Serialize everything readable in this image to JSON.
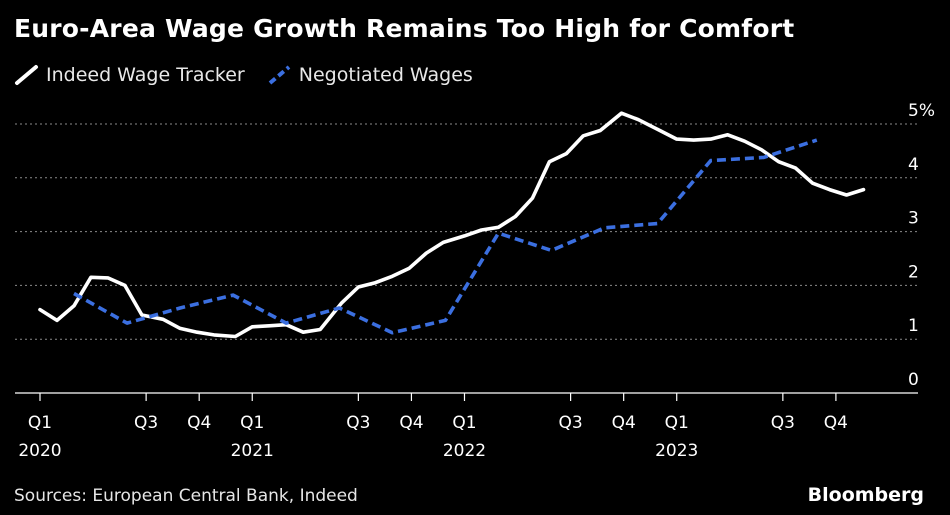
{
  "chart_data": {
    "type": "line",
    "title": "Euro-Area Wage Growth Remains Too High for Comfort",
    "source": "Sources: European Central Bank, Indeed",
    "brand": "Bloomberg",
    "y_unit": "%",
    "ylim": [
      0,
      5
    ],
    "yticks": [
      0,
      1,
      2,
      3,
      4,
      5
    ],
    "xlim": [
      2020.0,
      2023.9
    ],
    "quarter_ticks": [
      {
        "x": 2020.0,
        "label": "Q1",
        "year": "2020"
      },
      {
        "x": 2020.5,
        "label": "Q3",
        "year": ""
      },
      {
        "x": 2020.75,
        "label": "Q4",
        "year": ""
      },
      {
        "x": 2021.0,
        "label": "Q1",
        "year": "2021"
      },
      {
        "x": 2021.5,
        "label": "Q3",
        "year": ""
      },
      {
        "x": 2021.75,
        "label": "Q4",
        "year": ""
      },
      {
        "x": 2022.0,
        "label": "Q1",
        "year": "2022"
      },
      {
        "x": 2022.5,
        "label": "Q3",
        "year": ""
      },
      {
        "x": 2022.75,
        "label": "Q4",
        "year": ""
      },
      {
        "x": 2023.0,
        "label": "Q1",
        "year": "2023"
      },
      {
        "x": 2023.5,
        "label": "Q3",
        "year": ""
      },
      {
        "x": 2023.75,
        "label": "Q4",
        "year": ""
      }
    ],
    "grid": true,
    "legend_position": "top-left",
    "series": [
      {
        "name": "Indeed Wage Tracker",
        "color": "#ffffff",
        "style": "solid",
        "points": [
          [
            2020.0,
            1.55
          ],
          [
            2020.08,
            1.35
          ],
          [
            2020.16,
            1.62
          ],
          [
            2020.24,
            2.15
          ],
          [
            2020.32,
            2.14
          ],
          [
            2020.4,
            2.0
          ],
          [
            2020.48,
            1.45
          ],
          [
            2020.58,
            1.37
          ],
          [
            2020.66,
            1.2
          ],
          [
            2020.74,
            1.13
          ],
          [
            2020.82,
            1.08
          ],
          [
            2020.92,
            1.05
          ],
          [
            2021.0,
            1.23
          ],
          [
            2021.08,
            1.25
          ],
          [
            2021.16,
            1.27
          ],
          [
            2021.24,
            1.13
          ],
          [
            2021.32,
            1.18
          ],
          [
            2021.42,
            1.67
          ],
          [
            2021.5,
            1.97
          ],
          [
            2021.58,
            2.05
          ],
          [
            2021.66,
            2.17
          ],
          [
            2021.74,
            2.32
          ],
          [
            2021.82,
            2.6
          ],
          [
            2021.9,
            2.8
          ],
          [
            2022.0,
            2.92
          ],
          [
            2022.08,
            3.03
          ],
          [
            2022.16,
            3.08
          ],
          [
            2022.24,
            3.28
          ],
          [
            2022.32,
            3.62
          ],
          [
            2022.4,
            4.3
          ],
          [
            2022.48,
            4.45
          ],
          [
            2022.56,
            4.78
          ],
          [
            2022.64,
            4.88
          ],
          [
            2022.74,
            5.2
          ],
          [
            2022.82,
            5.08
          ],
          [
            2022.9,
            4.92
          ],
          [
            2023.0,
            4.72
          ],
          [
            2023.08,
            4.7
          ],
          [
            2023.16,
            4.72
          ],
          [
            2023.24,
            4.8
          ],
          [
            2023.32,
            4.68
          ],
          [
            2023.4,
            4.52
          ],
          [
            2023.48,
            4.3
          ],
          [
            2023.56,
            4.18
          ],
          [
            2023.64,
            3.9
          ],
          [
            2023.72,
            3.78
          ],
          [
            2023.8,
            3.68
          ],
          [
            2023.88,
            3.78
          ]
        ]
      },
      {
        "name": "Negotiated Wages",
        "color": "#3b6fe0",
        "style": "dashed",
        "points": [
          [
            2020.16,
            1.85
          ],
          [
            2020.41,
            1.3
          ],
          [
            2020.66,
            1.58
          ],
          [
            2020.91,
            1.82
          ],
          [
            2021.16,
            1.3
          ],
          [
            2021.41,
            1.58
          ],
          [
            2021.66,
            1.12
          ],
          [
            2021.91,
            1.35
          ],
          [
            2022.16,
            2.97
          ],
          [
            2022.41,
            2.65
          ],
          [
            2022.66,
            3.07
          ],
          [
            2022.91,
            3.15
          ],
          [
            2023.16,
            4.32
          ],
          [
            2023.41,
            4.38
          ],
          [
            2023.66,
            4.7
          ]
        ]
      }
    ]
  }
}
